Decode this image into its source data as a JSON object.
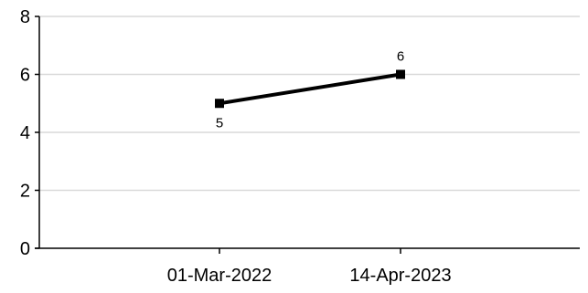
{
  "chart_data": {
    "type": "line",
    "categories": [
      "01-Mar-2022",
      "14-Apr-2023"
    ],
    "series": [
      {
        "values": [
          5,
          6
        ],
        "data_labels": [
          "5",
          "6"
        ],
        "color": "#000000",
        "marker": "square"
      }
    ],
    "yticks": [
      "0",
      "2",
      "4",
      "6",
      "8"
    ],
    "ylim": [
      0,
      8
    ],
    "grid": true,
    "grid_color": "#d9d9d9",
    "title": "",
    "xlabel": "",
    "ylabel": ""
  }
}
